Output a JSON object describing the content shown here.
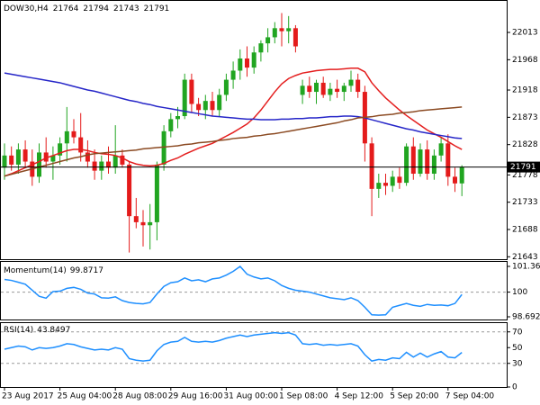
{
  "chart_data": [
    {
      "type": "candlestick",
      "title": "DOW30,H4",
      "categories": [
        "23 Aug 2017",
        null,
        null,
        null,
        null,
        null,
        null,
        null,
        "25 Aug 04:00",
        null,
        null,
        null,
        null,
        null,
        null,
        null,
        "28 Aug 08:00",
        null,
        null,
        null,
        null,
        null,
        null,
        null,
        "29 Aug 16:00",
        null,
        null,
        null,
        null,
        null,
        null,
        null,
        "31 Aug 00:00",
        null,
        null,
        null,
        null,
        null,
        null,
        null,
        "1 Sep 08:00",
        null,
        null,
        null,
        null,
        null,
        null,
        null,
        "4 Sep 12:00",
        null,
        null,
        null,
        null,
        null,
        null,
        null,
        "5 Sep 20:00",
        null,
        null,
        null,
        null,
        null,
        null,
        null,
        "7 Sep 04:00",
        null,
        null
      ],
      "open": [
        21790,
        21810,
        21795,
        21820,
        21800,
        21775,
        21815,
        21800,
        21810,
        21830,
        21850,
        21840,
        21815,
        21800,
        21785,
        21800,
        21790,
        21810,
        21795,
        21710,
        21700,
        21695,
        21700,
        21795,
        21850,
        21870,
        21875,
        21935,
        21895,
        21885,
        21900,
        21885,
        21910,
        21935,
        21950,
        21970,
        21955,
        21980,
        21995,
        22005,
        22020,
        22015,
        22020,
        21910,
        21925,
        21915,
        21930,
        21910,
        21920,
        21915,
        21925,
        21935,
        21915,
        21830,
        21755,
        21765,
        21760,
        21775,
        21765,
        21825,
        21780,
        21820,
        21780,
        21810,
        21830,
        21775,
        21764
      ],
      "high": [
        21830,
        21825,
        21830,
        21835,
        21820,
        21830,
        21840,
        21825,
        21840,
        21890,
        21870,
        21880,
        21835,
        21820,
        21810,
        21825,
        21860,
        21820,
        21800,
        21740,
        21720,
        21730,
        21800,
        21860,
        21880,
        21890,
        21945,
        21945,
        21905,
        21910,
        21915,
        21920,
        21945,
        21965,
        21985,
        21990,
        21990,
        22000,
        22020,
        22030,
        22045,
        22040,
        22025,
        21935,
        21940,
        21935,
        21940,
        21930,
        21935,
        21930,
        21950,
        21945,
        21925,
        21840,
        21780,
        21780,
        21785,
        21790,
        21830,
        21840,
        21830,
        21835,
        21820,
        21840,
        21845,
        21790,
        21794
      ],
      "low": [
        21770,
        21785,
        21780,
        21790,
        21760,
        21765,
        21790,
        21770,
        21795,
        21800,
        21830,
        21800,
        21790,
        21770,
        21770,
        21780,
        21780,
        21790,
        21650,
        21690,
        21660,
        21655,
        21670,
        21785,
        21840,
        21855,
        21870,
        21880,
        21875,
        21870,
        21875,
        21875,
        21900,
        21920,
        21935,
        21940,
        21945,
        21965,
        21980,
        21995,
        21990,
        21995,
        21980,
        21895,
        21905,
        21895,
        21905,
        21900,
        21905,
        21900,
        21915,
        21905,
        21800,
        21710,
        21740,
        21745,
        21750,
        21755,
        21760,
        21770,
        21775,
        21770,
        21770,
        21800,
        21760,
        21750,
        21743
      ],
      "close": [
        21810,
        21795,
        21820,
        21800,
        21775,
        21815,
        21800,
        21810,
        21830,
        21850,
        21840,
        21815,
        21800,
        21785,
        21800,
        21790,
        21810,
        21795,
        21710,
        21700,
        21695,
        21700,
        21795,
        21850,
        21870,
        21875,
        21935,
        21895,
        21885,
        21900,
        21885,
        21910,
        21935,
        21950,
        21970,
        21955,
        21980,
        21995,
        22005,
        22020,
        22015,
        22020,
        21990,
        21925,
        21915,
        21930,
        21910,
        21920,
        21915,
        21925,
        21935,
        21915,
        21830,
        21755,
        21765,
        21760,
        21775,
        21765,
        21825,
        21780,
        21820,
        21780,
        21810,
        21830,
        21775,
        21764,
        21791
      ],
      "up_color": "#21a521",
      "down_color": "#e41b1b",
      "lines": [
        {
          "color": "#e41e1e",
          "values": [
            21776,
            21780,
            21785,
            21790,
            21795,
            21800,
            21806,
            21810,
            21814,
            21818,
            21820,
            21820,
            21818,
            21815,
            21813,
            21812,
            21810,
            21806,
            21800,
            21796,
            21794,
            21793,
            21794,
            21797,
            21802,
            21806,
            21812,
            21817,
            21822,
            21826,
            21830,
            21836,
            21842,
            21848,
            21855,
            21862,
            21872,
            21885,
            21900,
            21915,
            21928,
            21937,
            21942,
            21946,
            21948,
            21950,
            21951,
            21952,
            21952,
            21953,
            21954,
            21954,
            21948,
            21930,
            21917,
            21905,
            21895,
            21885,
            21876,
            21868,
            21860,
            21852,
            21846,
            21840,
            21833,
            21826,
            21820
          ]
        },
        {
          "color": "#2626c8",
          "values": [
            21946,
            21944,
            21942,
            21940,
            21938,
            21936,
            21934,
            21932,
            21930,
            21927,
            21924,
            21921,
            21918,
            21916,
            21913,
            21910,
            21907,
            21904,
            21901,
            21899,
            21896,
            21894,
            21891,
            21889,
            21887,
            21885,
            21883,
            21881,
            21879,
            21877,
            21875,
            21874,
            21873,
            21872,
            21871,
            21870,
            21870,
            21869,
            21869,
            21869,
            21870,
            21870,
            21871,
            21871,
            21872,
            21872,
            21873,
            21874,
            21874,
            21875,
            21875,
            21874,
            21872,
            21869,
            21866,
            21863,
            21860,
            21857,
            21854,
            21852,
            21849,
            21847,
            21845,
            21843,
            21841,
            21839,
            21838
          ]
        },
        {
          "color": "#8b4a22",
          "values": [
            21776,
            21779,
            21782,
            21785,
            21788,
            21791,
            21794,
            21797,
            21800,
            21803,
            21806,
            21808,
            21811,
            21813,
            21814,
            21815,
            21816,
            21817,
            21818,
            21819,
            21821,
            21822,
            21823,
            21824,
            21825,
            21826,
            21828,
            21829,
            21831,
            21832,
            21833,
            21835,
            21836,
            21838,
            21839,
            21840,
            21842,
            21843,
            21845,
            21846,
            21848,
            21850,
            21852,
            21854,
            21856,
            21858,
            21860,
            21862,
            21864,
            21867,
            21869,
            21872,
            21873,
            21874,
            21876,
            21877,
            21878,
            21880,
            21881,
            21882,
            21884,
            21885,
            21886,
            21887,
            21888,
            21889,
            21890
          ]
        }
      ],
      "ylim": [
        21639,
        22065
      ],
      "yticks": [
        22013,
        21968,
        21918,
        21873,
        21828,
        21778,
        21733,
        21688,
        21643
      ]
    },
    {
      "type": "line",
      "title": "Momentum(14)",
      "color": "#1e8fff",
      "values": [
        100.67,
        100.62,
        100.52,
        100.42,
        100.1,
        99.78,
        99.68,
        100.03,
        100.05,
        100.2,
        100.25,
        100.15,
        99.95,
        99.9,
        99.7,
        99.68,
        99.75,
        99.55,
        99.45,
        99.4,
        99.38,
        99.45,
        99.9,
        100.3,
        100.5,
        100.55,
        100.75,
        100.6,
        100.65,
        100.55,
        100.7,
        100.75,
        100.9,
        101.1,
        101.36,
        100.95,
        100.8,
        100.7,
        100.75,
        100.6,
        100.35,
        100.2,
        100.1,
        100.05,
        100,
        99.9,
        99.8,
        99.7,
        99.65,
        99.6,
        99.7,
        99.55,
        99.2,
        98.8,
        98.78,
        98.8,
        99.2,
        99.3,
        99.4,
        99.3,
        99.25,
        99.35,
        99.3,
        99.32,
        99.28,
        99.4,
        99.8717
      ],
      "ylim": [
        98.6929,
        101.3616
      ],
      "yticks": [
        101.3616,
        100,
        98.6929
      ],
      "levels": [
        100
      ]
    },
    {
      "type": "line",
      "title": "RSI(14)",
      "color": "#1e8fff",
      "values": [
        48,
        50,
        52,
        51,
        47,
        50,
        49,
        50,
        52,
        55,
        54,
        51,
        49,
        47,
        48,
        47,
        50,
        48,
        36,
        34,
        33,
        34,
        46,
        54,
        57,
        58,
        63,
        58,
        57,
        58,
        57,
        59,
        62,
        64,
        66,
        64,
        66,
        67,
        68,
        69,
        68,
        69,
        66,
        55,
        54,
        55,
        53,
        54,
        53,
        54,
        55,
        52,
        41,
        33,
        35,
        34,
        37,
        36,
        44,
        38,
        43,
        38,
        42,
        45,
        38,
        37,
        43.8497
      ],
      "ylim": [
        0,
        80
      ],
      "yticks": [
        70,
        50,
        30,
        0
      ],
      "levels": [
        70,
        30
      ]
    }
  ]
}
